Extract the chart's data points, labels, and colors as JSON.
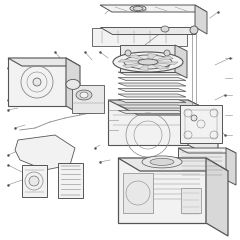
{
  "background_color": "#ffffff",
  "figure_width": 2.4,
  "figure_height": 2.4,
  "dpi": 100,
  "line_color": "#555555",
  "light_line": "#888888",
  "faint_line": "#aaaaaa",
  "fill_light": "#f2f2f2",
  "fill_mid": "#e8e8e8",
  "fill_dark": "#d8d8d8"
}
